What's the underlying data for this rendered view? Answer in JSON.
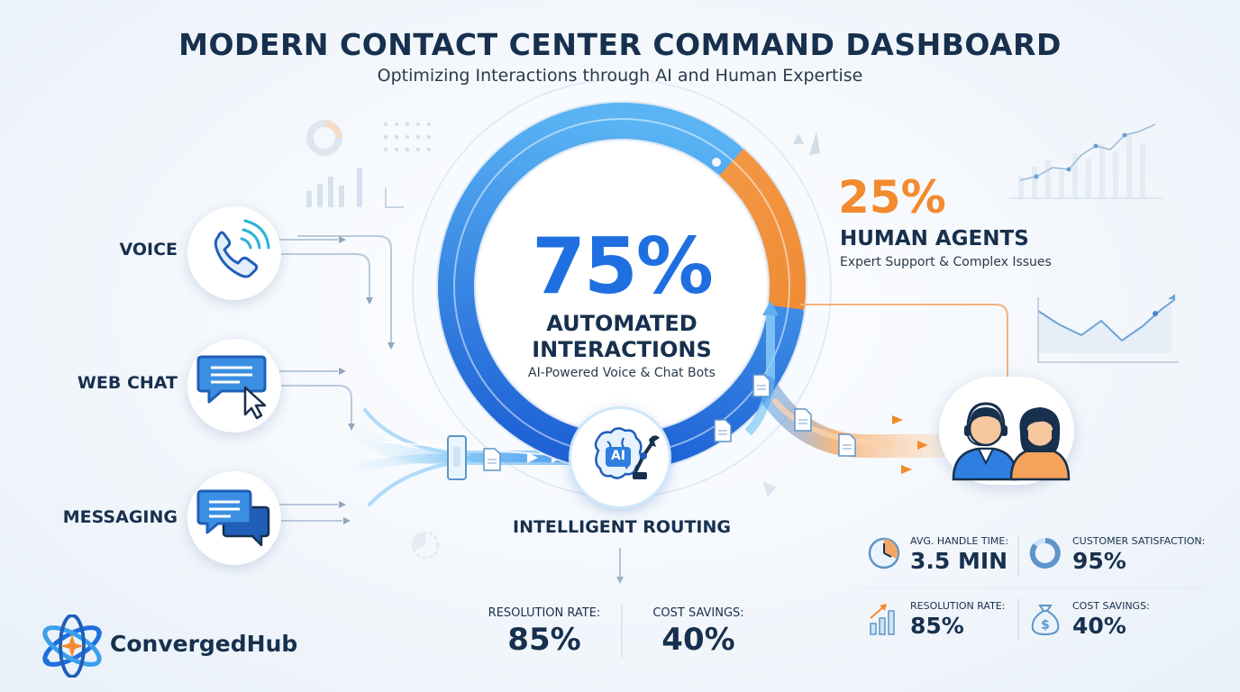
{
  "header": {
    "title": "MODERN CONTACT CENTER COMMAND DASHBOARD",
    "subtitle": "Optimizing Interactions through AI and Human Expertise"
  },
  "channels": [
    {
      "label": "VOICE",
      "icon": "phone-icon"
    },
    {
      "label": "WEB CHAT",
      "icon": "chat-cursor-icon"
    },
    {
      "label": "MESSAGING",
      "icon": "messaging-icon"
    }
  ],
  "automated": {
    "percent": "75%",
    "label": "AUTOMATED INTERACTIONS",
    "sub": "AI-Powered Voice & Chat Bots",
    "fraction": 0.75
  },
  "human": {
    "percent": "25%",
    "label": "HUMAN AGENTS",
    "sub": "Expert Support & Complex Issues",
    "fraction": 0.25
  },
  "routing": {
    "label": "INTELLIGENT ROUTING",
    "badge": "AI",
    "icon": "ai-brain-robot-icon"
  },
  "bottom_stats": [
    {
      "label": "RESOLUTION RATE:",
      "value": "85%"
    },
    {
      "label": "COST SAVINGS:",
      "value": "40%"
    }
  ],
  "agent_stats": [
    {
      "label": "AVG. HANDLE TIME:",
      "value": "3.5 MIN",
      "icon": "clock-icon"
    },
    {
      "label": "CUSTOMER SATISFACTION:",
      "value": "95%",
      "icon": "donut-icon"
    },
    {
      "label": "RESOLUTION RATE:",
      "value": "85%",
      "icon": "bar-growth-icon"
    },
    {
      "label": "COST SAVINGS:",
      "value": "40%",
      "icon": "money-bag-icon"
    }
  ],
  "brand": {
    "name": "ConvergedHub",
    "logo_icon": "atom-star-logo-icon"
  },
  "colors": {
    "navy": "#17304e",
    "blue": "#1f6fe0",
    "orange": "#f28a2e",
    "light_blue": "#7fc3f5"
  }
}
